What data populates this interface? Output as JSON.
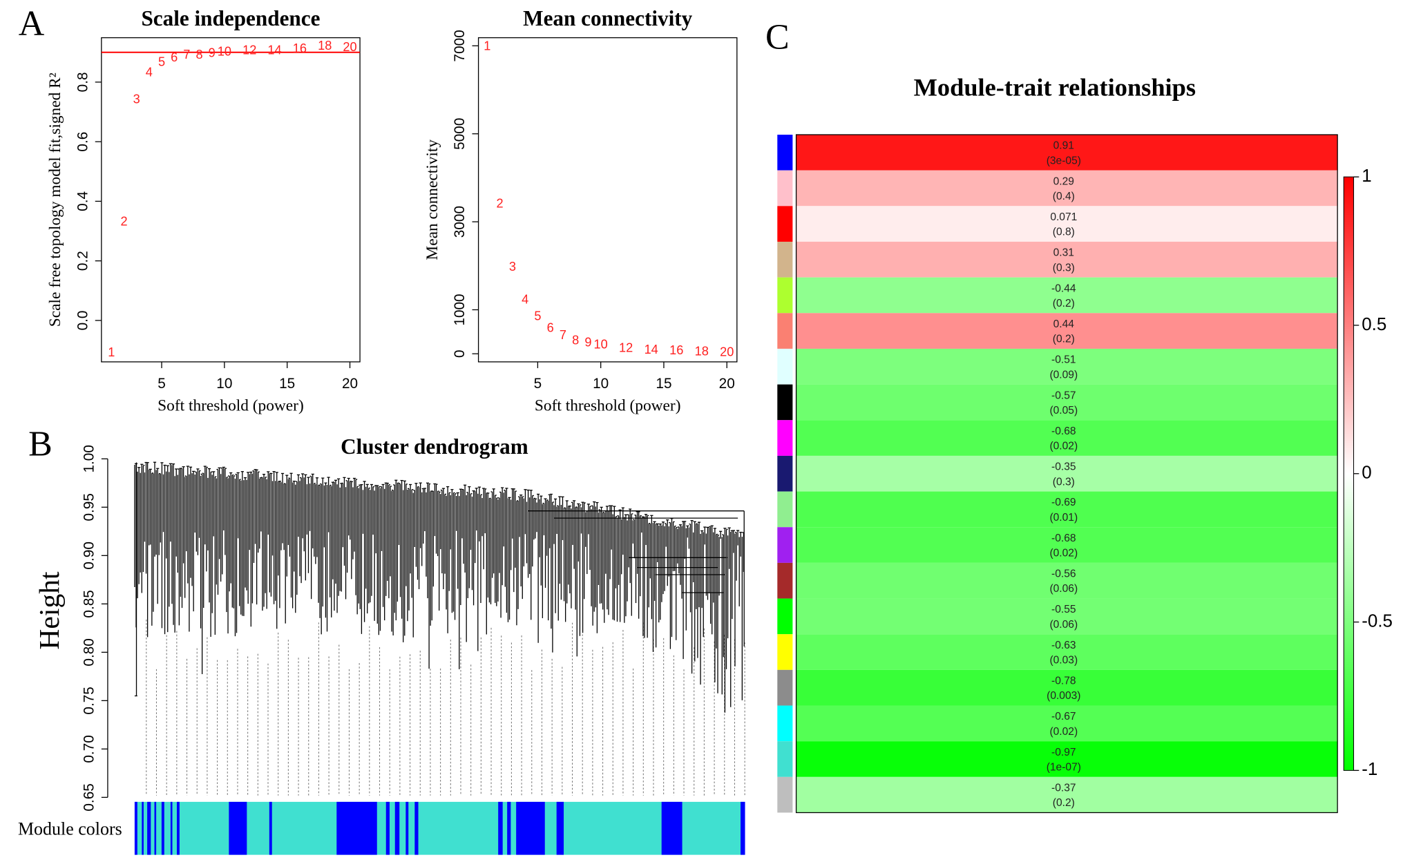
{
  "chart_data": [
    {
      "type": "scatter",
      "panel": "A",
      "title": "Scale independence",
      "xlabel": "Soft threshold (power)",
      "ylabel": "Scale free topology model fit,signed R²",
      "x": [
        1,
        2,
        3,
        4,
        5,
        6,
        7,
        8,
        9,
        10,
        12,
        14,
        16,
        18,
        20
      ],
      "values": [
        -0.11,
        0.33,
        0.74,
        0.83,
        0.865,
        0.88,
        0.89,
        0.89,
        0.895,
        0.9,
        0.905,
        0.905,
        0.91,
        0.92,
        0.915
      ],
      "color": "#ff2020",
      "hline": 0.9,
      "hline_color": "#ff0000",
      "xlim": [
        0.2,
        20.8
      ],
      "ylim": [
        -0.139,
        0.949
      ],
      "xticks": [
        5,
        10,
        15,
        20
      ],
      "yticks": [
        {
          "value": 0,
          "label": "0.0"
        },
        0.2,
        0.4,
        0.6,
        0.8
      ]
    },
    {
      "type": "scatter",
      "title": "Mean connectivity",
      "xlabel": "Soft threshold (power)",
      "ylabel": "Mean connectivity",
      "x": [
        1,
        2,
        3,
        4,
        5,
        6,
        7,
        8,
        9,
        10,
        12,
        14,
        16,
        18,
        20
      ],
      "values": [
        6980,
        3400,
        1960,
        1220,
        840,
        570,
        410,
        290,
        245,
        200,
        120,
        80,
        60,
        40,
        20
      ],
      "color": "#ff2020",
      "xlim": [
        0.3,
        20.8
      ],
      "ylim": [
        -184,
        7184
      ],
      "xticks": [
        5,
        10,
        15,
        20
      ],
      "yticks": [
        0,
        1000,
        3000,
        5000,
        7000
      ]
    },
    {
      "type": "dendrogram",
      "panel": "B",
      "title": "Cluster dendrogram",
      "ylabel": "Height",
      "strip_label": "Module colors",
      "ylim": [
        0.65,
        1.0
      ],
      "yticks": [
        0.65,
        {
          "value": 0.7,
          "label": "0.70"
        },
        0.75,
        {
          "value": 0.8,
          "label": "0.80"
        },
        0.85,
        {
          "value": 0.9,
          "label": "0.90"
        },
        0.95,
        {
          "value": 1.0,
          "label": "1.00"
        }
      ]
    },
    {
      "type": "heatmap",
      "panel": "C",
      "title": "Module-trait relationships",
      "values": [
        0.91,
        0.29,
        0.071,
        0.31,
        -0.44,
        0.44,
        -0.51,
        -0.57,
        -0.68,
        -0.35,
        -0.69,
        -0.68,
        -0.56,
        -0.55,
        -0.63,
        -0.78,
        -0.67,
        -0.97,
        -0.37
      ],
      "p_labels": [
        "(3e-05)",
        "(0.4)",
        "(0.8)",
        "(0.3)",
        "(0.2)",
        "(0.2)",
        "(0.09)",
        "(0.05)",
        "(0.02)",
        "(0.3)",
        "(0.01)",
        "(0.02)",
        "(0.06)",
        "(0.06)",
        "(0.03)",
        "(0.003)",
        "(0.02)",
        "(1e-07)",
        "(0.2)"
      ],
      "row_colors": [
        "#0000ff",
        "#ffc0cb",
        "#ff0000",
        "#d2b48c",
        "#adff2f",
        "#fa8072",
        "#e0ffff",
        "#000000",
        "#ff00ff",
        "#191970",
        "#90ee90",
        "#a020f0",
        "#a52a2a",
        "#00ff00",
        "#ffff00",
        "#8c8c8c",
        "#00ffff",
        "#40e0d0",
        "#bebebe"
      ],
      "low_color": "#00ff00",
      "mid_color": "#ffffff",
      "high_color": "#ff0000",
      "zlim": [
        -1,
        1
      ],
      "zticks": [
        1,
        0.5,
        0,
        -0.5,
        -1
      ]
    }
  ]
}
